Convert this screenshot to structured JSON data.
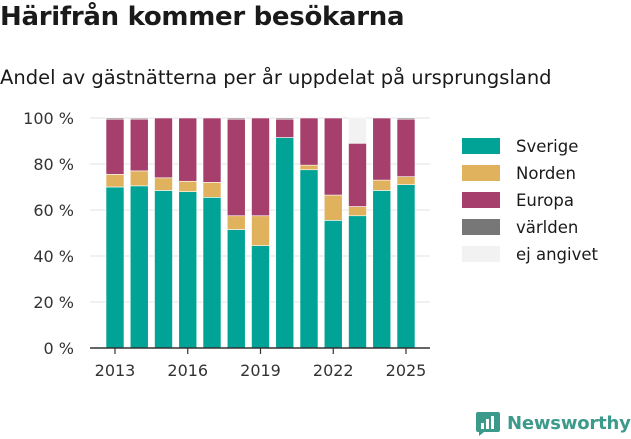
{
  "title": "Härifrån kommer besökarna",
  "subtitle": "Andel av gästnätterna per år uppdelat på ursprungsland",
  "brand": "Newsworthy",
  "colors": {
    "Sverige": "#00a396",
    "Norden": "#e0b25d",
    "Europa": "#a63f6b",
    "världen": "#777777",
    "ej angivet": "#f2f2f2"
  },
  "chart_data": {
    "type": "bar",
    "stacked": true,
    "categories": [
      "2013",
      "2014",
      "2015",
      "2016",
      "2017",
      "2018",
      "2019",
      "2020",
      "2021",
      "2022",
      "2023",
      "2024",
      "2025"
    ],
    "x_tick_labels": [
      "2013",
      "2016",
      "2019",
      "2022",
      "2025"
    ],
    "y_ticks": [
      "0 %",
      "20 %",
      "40 %",
      "60 %",
      "80 %",
      "100 %"
    ],
    "ylim": [
      0,
      100
    ],
    "grid": true,
    "legend_position": "right",
    "series": [
      {
        "name": "Sverige",
        "values": [
          70,
          70.5,
          68.5,
          68,
          65.5,
          51.5,
          44.5,
          91.5,
          77.5,
          55.5,
          57.5,
          68.5,
          71
        ]
      },
      {
        "name": "Norden",
        "values": [
          5.5,
          6.5,
          5.5,
          4.5,
          6.5,
          6,
          13,
          0,
          2,
          11,
          4,
          4.5,
          3.5
        ]
      },
      {
        "name": "Europa",
        "values": [
          24,
          22.5,
          26,
          27.5,
          28,
          42,
          42.5,
          8,
          20.5,
          33.5,
          27.5,
          27,
          25
        ]
      },
      {
        "name": "världen",
        "values": [
          0.5,
          0.5,
          0,
          0,
          0,
          0.5,
          0,
          0.5,
          0,
          0,
          0,
          0,
          0.5
        ]
      },
      {
        "name": "ej angivet",
        "values": [
          0,
          0.5,
          0,
          0,
          0,
          0,
          0,
          0,
          0,
          0,
          11,
          0,
          0
        ]
      }
    ]
  }
}
